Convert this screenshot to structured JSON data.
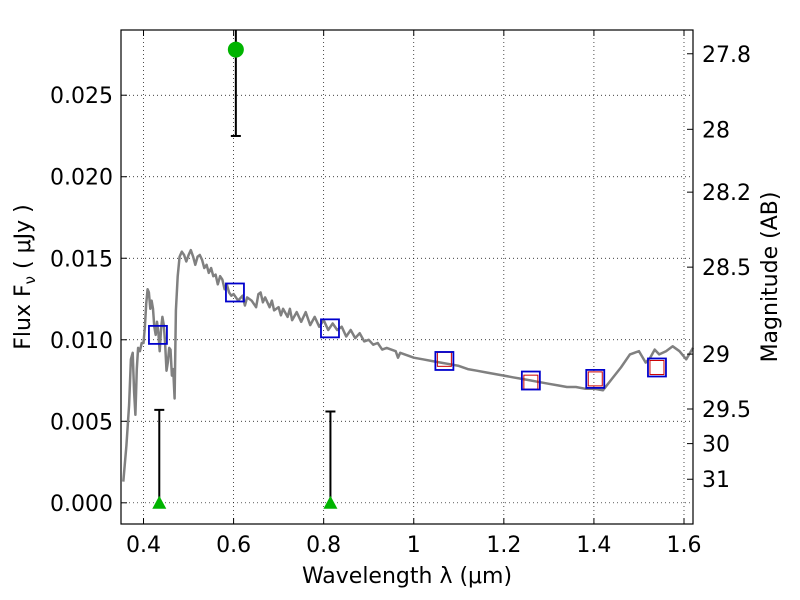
{
  "chart_data": {
    "type": "scatter",
    "xlabel": "Wavelength  λ (μm)",
    "ylabel": "Flux  F",
    "ylabel_sub": "ν",
    "ylabel_units": "  ( μJy )",
    "ylabel_right": "Magnitude (AB)",
    "xlim": [
      0.35,
      1.62
    ],
    "ylim": [
      -0.0013,
      0.029
    ],
    "grid": true,
    "x_ticks": [
      {
        "value": 0.4,
        "label": "0.4"
      },
      {
        "value": 0.6,
        "label": "0.6"
      },
      {
        "value": 0.8,
        "label": "0.8"
      },
      {
        "value": 1.0,
        "label": "1"
      },
      {
        "value": 1.2,
        "label": "1.2"
      },
      {
        "value": 1.4,
        "label": "1.4"
      },
      {
        "value": 1.6,
        "label": "1.6"
      }
    ],
    "y_ticks": [
      {
        "value": 0.0,
        "label": "0.000"
      },
      {
        "value": 0.005,
        "label": "0.005"
      },
      {
        "value": 0.01,
        "label": "0.010"
      },
      {
        "value": 0.015,
        "label": "0.015"
      },
      {
        "value": 0.02,
        "label": "0.020"
      },
      {
        "value": 0.025,
        "label": "0.025"
      }
    ],
    "right_ticks": [
      {
        "value": 27.8,
        "label": "27.8"
      },
      {
        "value": 28.0,
        "label": "28"
      },
      {
        "value": 28.2,
        "label": "28.2"
      },
      {
        "value": 28.5,
        "label": "28.5"
      },
      {
        "value": 29.0,
        "label": "29"
      },
      {
        "value": 29.5,
        "label": "29.5"
      },
      {
        "value": 30.0,
        "label": "30"
      },
      {
        "value": 31.0,
        "label": "31"
      }
    ],
    "model_spectrum": {
      "color": "#808080",
      "points": [
        [
          0.355,
          0.0013
        ],
        [
          0.362,
          0.0035
        ],
        [
          0.368,
          0.006
        ],
        [
          0.372,
          0.0088
        ],
        [
          0.376,
          0.0092
        ],
        [
          0.379,
          0.0068
        ],
        [
          0.382,
          0.0054
        ],
        [
          0.385,
          0.0082
        ],
        [
          0.388,
          0.0095
        ],
        [
          0.392,
          0.0093
        ],
        [
          0.396,
          0.0098
        ],
        [
          0.4,
          0.0098
        ],
        [
          0.403,
          0.0108
        ],
        [
          0.406,
          0.0122
        ],
        [
          0.409,
          0.0131
        ],
        [
          0.412,
          0.0129
        ],
        [
          0.415,
          0.0119
        ],
        [
          0.418,
          0.0124
        ],
        [
          0.421,
          0.0119
        ],
        [
          0.424,
          0.0108
        ],
        [
          0.427,
          0.0103
        ],
        [
          0.43,
          0.0111
        ],
        [
          0.433,
          0.0104
        ],
        [
          0.436,
          0.0093
        ],
        [
          0.439,
          0.0107
        ],
        [
          0.442,
          0.0114
        ],
        [
          0.445,
          0.0109
        ],
        [
          0.448,
          0.0098
        ],
        [
          0.451,
          0.0081
        ],
        [
          0.454,
          0.0086
        ],
        [
          0.457,
          0.0095
        ],
        [
          0.46,
          0.0094
        ],
        [
          0.463,
          0.0078
        ],
        [
          0.466,
          0.0082
        ],
        [
          0.469,
          0.0064
        ],
        [
          0.472,
          0.0118
        ],
        [
          0.476,
          0.0139
        ],
        [
          0.48,
          0.0151
        ],
        [
          0.485,
          0.0154
        ],
        [
          0.49,
          0.0152
        ],
        [
          0.495,
          0.0148
        ],
        [
          0.5,
          0.0152
        ],
        [
          0.505,
          0.0155
        ],
        [
          0.51,
          0.0151
        ],
        [
          0.515,
          0.0146
        ],
        [
          0.52,
          0.0151
        ],
        [
          0.525,
          0.0152
        ],
        [
          0.53,
          0.0149
        ],
        [
          0.535,
          0.0144
        ],
        [
          0.54,
          0.0146
        ],
        [
          0.545,
          0.0141
        ],
        [
          0.55,
          0.0144
        ],
        [
          0.555,
          0.0139
        ],
        [
          0.56,
          0.014
        ],
        [
          0.565,
          0.0134
        ],
        [
          0.57,
          0.0139
        ],
        [
          0.575,
          0.0137
        ],
        [
          0.58,
          0.0131
        ],
        [
          0.585,
          0.0134
        ],
        [
          0.59,
          0.0129
        ],
        [
          0.595,
          0.0127
        ],
        [
          0.6,
          0.0128
        ],
        [
          0.61,
          0.0124
        ],
        [
          0.62,
          0.0127
        ],
        [
          0.625,
          0.0121
        ],
        [
          0.63,
          0.0126
        ],
        [
          0.64,
          0.0124
        ],
        [
          0.65,
          0.012
        ],
        [
          0.655,
          0.0128
        ],
        [
          0.66,
          0.0129
        ],
        [
          0.665,
          0.0123
        ],
        [
          0.67,
          0.0126
        ],
        [
          0.68,
          0.012
        ],
        [
          0.685,
          0.0124
        ],
        [
          0.69,
          0.0118
        ],
        [
          0.7,
          0.012
        ],
        [
          0.705,
          0.0115
        ],
        [
          0.71,
          0.0119
        ],
        [
          0.72,
          0.0114
        ],
        [
          0.725,
          0.0119
        ],
        [
          0.73,
          0.0112
        ],
        [
          0.74,
          0.0117
        ],
        [
          0.75,
          0.0111
        ],
        [
          0.76,
          0.0117
        ],
        [
          0.77,
          0.0109
        ],
        [
          0.78,
          0.0114
        ],
        [
          0.79,
          0.0108
        ],
        [
          0.8,
          0.0112
        ],
        [
          0.81,
          0.0106
        ],
        [
          0.82,
          0.011
        ],
        [
          0.83,
          0.0106
        ],
        [
          0.84,
          0.0108
        ],
        [
          0.85,
          0.0102
        ],
        [
          0.86,
          0.0106
        ],
        [
          0.87,
          0.0101
        ],
        [
          0.88,
          0.0104
        ],
        [
          0.89,
          0.0099
        ],
        [
          0.9,
          0.01
        ],
        [
          0.91,
          0.0097
        ],
        [
          0.92,
          0.0098
        ],
        [
          0.93,
          0.0094
        ],
        [
          0.94,
          0.0095
        ],
        [
          0.95,
          0.0094
        ],
        [
          0.96,
          0.0093
        ],
        [
          0.965,
          0.0089
        ],
        [
          0.97,
          0.0092
        ],
        [
          0.98,
          0.0091
        ],
        [
          0.99,
          0.009
        ],
        [
          1.0,
          0.0089
        ],
        [
          1.02,
          0.0088
        ],
        [
          1.04,
          0.0087
        ],
        [
          1.06,
          0.0086
        ],
        [
          1.08,
          0.0085
        ],
        [
          1.1,
          0.0084
        ],
        [
          1.12,
          0.0082
        ],
        [
          1.14,
          0.0081
        ],
        [
          1.16,
          0.008
        ],
        [
          1.18,
          0.0079
        ],
        [
          1.2,
          0.0078
        ],
        [
          1.22,
          0.0077
        ],
        [
          1.24,
          0.0076
        ],
        [
          1.26,
          0.0075
        ],
        [
          1.28,
          0.0074
        ],
        [
          1.3,
          0.0073
        ],
        [
          1.32,
          0.0072
        ],
        [
          1.34,
          0.0071
        ],
        [
          1.36,
          0.0071
        ],
        [
          1.38,
          0.007
        ],
        [
          1.4,
          0.007
        ],
        [
          1.42,
          0.0069
        ],
        [
          1.44,
          0.0076
        ],
        [
          1.46,
          0.0083
        ],
        [
          1.48,
          0.0091
        ],
        [
          1.5,
          0.0093
        ],
        [
          1.515,
          0.0086
        ],
        [
          1.525,
          0.0089
        ],
        [
          1.535,
          0.0094
        ],
        [
          1.545,
          0.0091
        ],
        [
          1.56,
          0.0093
        ],
        [
          1.575,
          0.0096
        ],
        [
          1.59,
          0.0093
        ],
        [
          1.605,
          0.0088
        ],
        [
          1.62,
          0.0095
        ]
      ]
    },
    "photometry_model": {
      "color": "#0000cc",
      "points": [
        [
          0.432,
          0.0103
        ],
        [
          0.603,
          0.0129
        ],
        [
          0.814,
          0.0107
        ],
        [
          1.068,
          0.0087
        ],
        [
          1.26,
          0.0075
        ],
        [
          1.403,
          0.0076
        ],
        [
          1.54,
          0.0083
        ]
      ]
    },
    "photometry_observed": {
      "color": "#cc0000",
      "points": [
        [
          1.068,
          0.0088
        ],
        [
          1.26,
          0.0074
        ],
        [
          1.403,
          0.0076
        ],
        [
          1.54,
          0.0083
        ]
      ]
    },
    "detections": {
      "color": "#00b400",
      "points": [
        {
          "x": 0.605,
          "y": 0.0278,
          "err_low": 0.0225,
          "err_high": 0.029
        }
      ]
    },
    "upper_limits": {
      "color": "#00b400",
      "points": [
        {
          "x": 0.435,
          "y": 0.0,
          "limit": 0.0057
        },
        {
          "x": 0.815,
          "y": 0.0,
          "limit": 0.0056
        }
      ]
    }
  }
}
